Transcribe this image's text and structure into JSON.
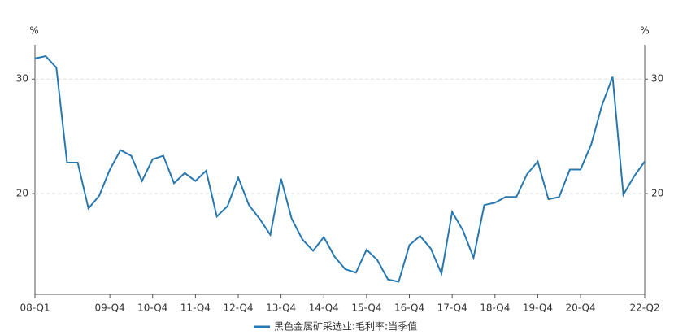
{
  "chart_data": {
    "type": "line",
    "y_unit": "%",
    "categories": [
      "08-Q1",
      null,
      null,
      null,
      null,
      null,
      null,
      "09-Q4",
      null,
      null,
      null,
      "10-Q4",
      null,
      null,
      null,
      "11-Q4",
      null,
      null,
      null,
      "12-Q4",
      null,
      null,
      null,
      "13-Q4",
      null,
      null,
      null,
      "14-Q4",
      null,
      null,
      null,
      "15-Q4",
      null,
      null,
      null,
      "16-Q4",
      null,
      null,
      null,
      "17-Q4",
      null,
      null,
      null,
      "18-Q4",
      null,
      null,
      null,
      "19-Q4",
      null,
      null,
      null,
      "20-Q4",
      null,
      null,
      null,
      null,
      null,
      "22-Q2"
    ],
    "series": [
      {
        "name": "黑色金属矿采选业:毛利率:当季值",
        "color": "#2878b0",
        "values": [
          31.8,
          32.0,
          31.0,
          22.7,
          22.7,
          18.7,
          19.8,
          22.1,
          23.8,
          23.3,
          21.1,
          23.0,
          23.3,
          20.9,
          21.8,
          21.1,
          22.0,
          18.0,
          18.9,
          21.4,
          19.0,
          17.8,
          16.4,
          21.3,
          17.8,
          16.0,
          15.0,
          16.2,
          14.5,
          13.4,
          13.1,
          15.1,
          14.2,
          12.5,
          12.3,
          15.5,
          16.3,
          15.2,
          13.0,
          18.4,
          16.8,
          14.4,
          19.0,
          19.2,
          19.7,
          19.7,
          21.7,
          22.8,
          19.5,
          19.7,
          22.1,
          22.1,
          24.3,
          27.7,
          30.2,
          19.9,
          21.5,
          22.8
        ]
      }
    ],
    "ylim": [
      11.2,
      33
    ],
    "yticks": [
      20,
      30
    ],
    "grid": true
  }
}
